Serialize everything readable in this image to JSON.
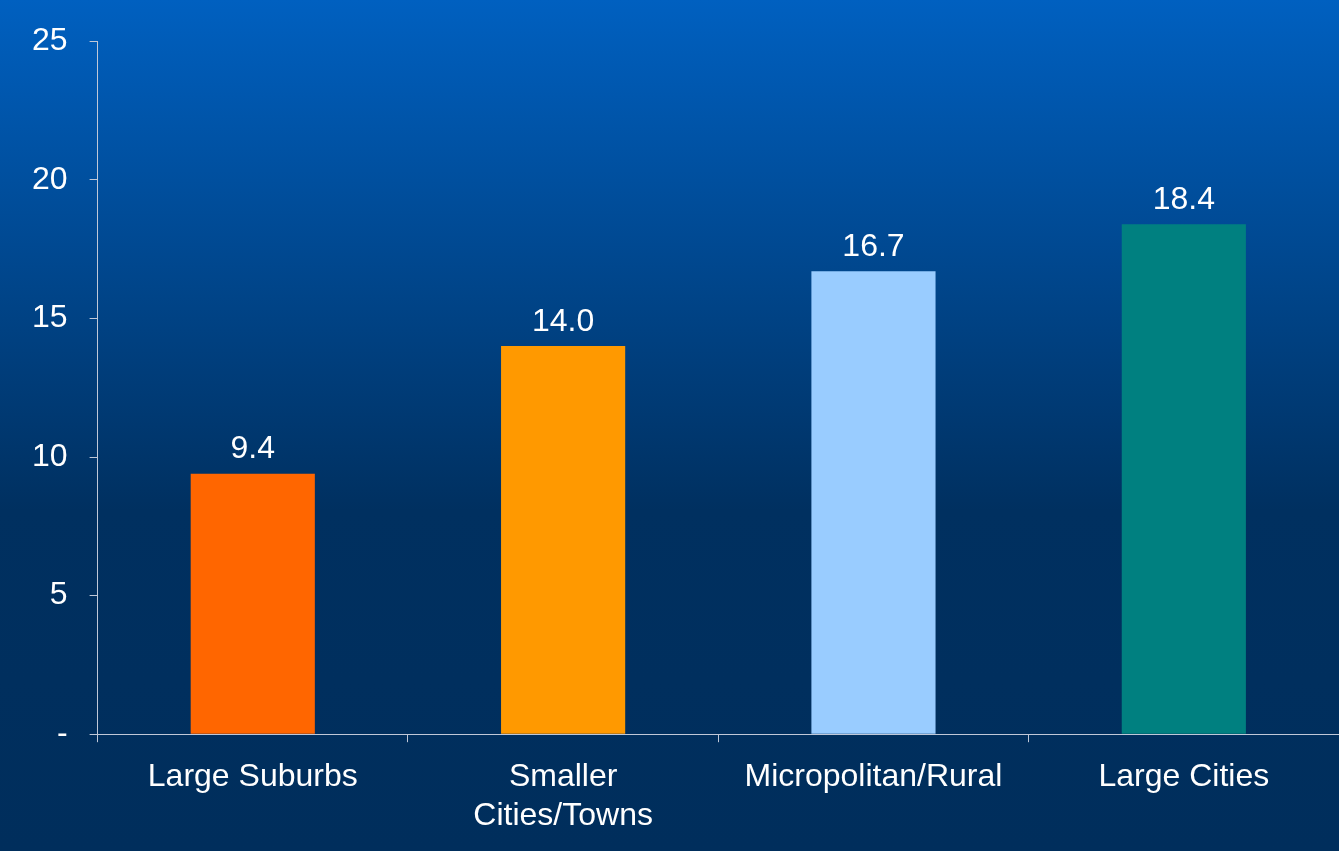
{
  "chart_data": {
    "type": "bar",
    "categories": [
      "Large Suburbs",
      "Smaller Cities/Towns",
      "Micropolitan/Rural",
      "Large Cities"
    ],
    "values": [
      9.4,
      14.0,
      16.7,
      18.4
    ],
    "colors": [
      "#ff6600",
      "#ff9900",
      "#99ccff",
      "#008080"
    ],
    "value_labels": [
      "9.4",
      "14.0",
      "16.7",
      "18.4"
    ],
    "ylim": [
      0,
      25
    ],
    "yticks": [
      {
        "value": 0,
        "label": "-"
      },
      5,
      10,
      15,
      20,
      25
    ],
    "grid": false,
    "legend": false
  }
}
